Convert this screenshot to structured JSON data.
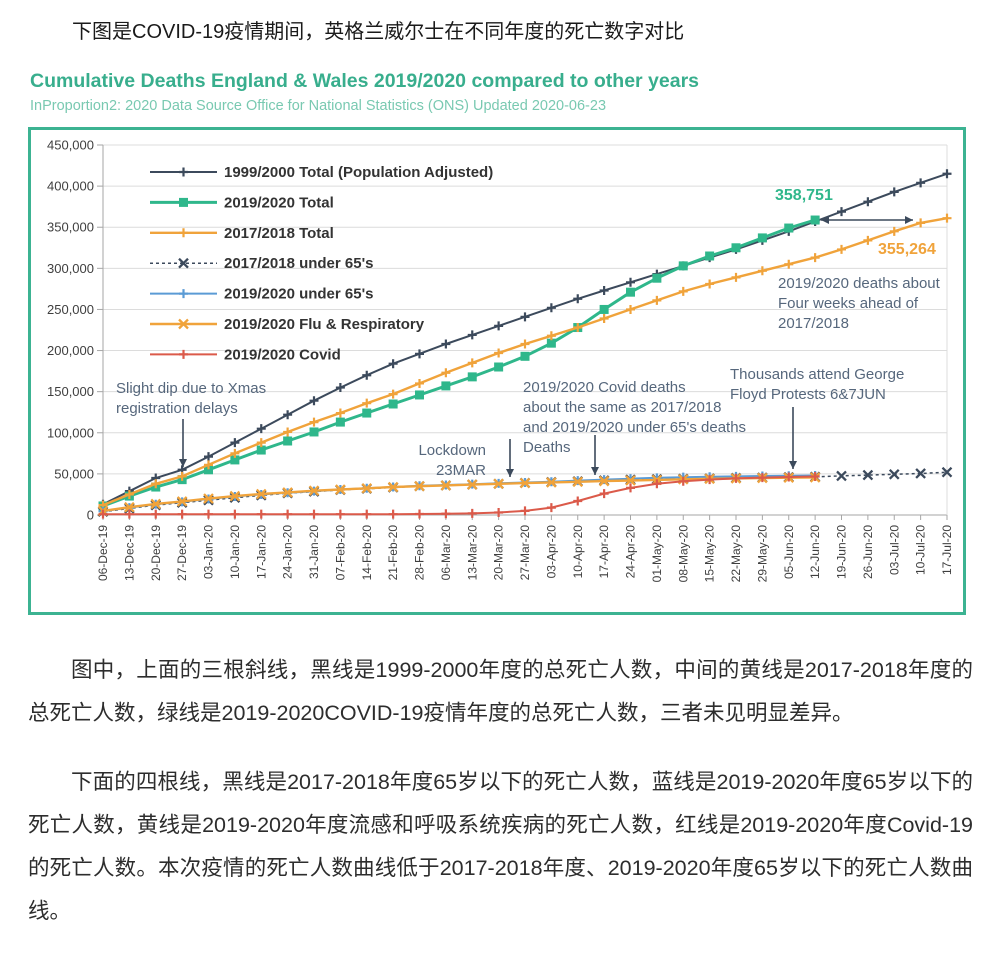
{
  "page": {
    "intro": "下图是COVID-19疫情期间，英格兰威尔士在不同年度的死亡数字对比",
    "paragraph1": "图中，上面的三根斜线，黑线是1999-2000年度的总死亡人数，中间的黄线是2017-2018年度的总死亡人数，绿线是2019-2020COVID-19疫情年度的总死亡人数，三者未见明显差异。",
    "paragraph2": "下面的四根线，黑线是2017-2018年度65岁以下的死亡人数，蓝线是2019-2020年度65岁以下的死亡人数，黄线是2019-2020年度流感和呼吸系统疾病的死亡人数，红线是2019-2020年度Covid-19的死亡人数。本次疫情的死亡人数曲线低于2017-2018年度、2019-2020年度65岁以下的死亡人数曲线。"
  },
  "chart_header": {
    "title": "Cumulative Deaths England & Wales 2019/2020 compared to other years",
    "subtitle": "InProportion2: 2020 Data Source Office for National Statistics (ONS) Updated 2020-06-23"
  },
  "colors": {
    "teal": "#38AE8D",
    "teal_light": "#79C9B1",
    "box_border": "#3CB392",
    "gridline": "#DCDCDC",
    "axis": "#A6A6A6",
    "tick_text": "#3F3F3F",
    "annotation_text": "#56677C",
    "arrow": "#3C4A5C"
  },
  "chart_data": {
    "type": "line",
    "title": "Cumulative Deaths England & Wales 2019/2020 compared to other years",
    "xlabel": "",
    "ylabel": "",
    "ylim": [
      0,
      450000
    ],
    "ytick_step": 50000,
    "grid": "horizontal",
    "legend_position": "top-left-inside",
    "x": [
      "06-Dec-19",
      "13-Dec-19",
      "20-Dec-19",
      "27-Dec-19",
      "03-Jan-20",
      "10-Jan-20",
      "17-Jan-20",
      "24-Jan-20",
      "31-Jan-20",
      "07-Feb-20",
      "14-Feb-20",
      "21-Feb-20",
      "28-Feb-20",
      "06-Mar-20",
      "13-Mar-20",
      "20-Mar-20",
      "27-Mar-20",
      "03-Apr-20",
      "10-Apr-20",
      "17-Apr-20",
      "24-Apr-20",
      "01-May-20",
      "08-May-20",
      "15-May-20",
      "22-May-20",
      "29-May-20",
      "05-Jun-20",
      "12-Jun-20",
      "19-Jun-20",
      "26-Jun-20",
      "03-Jul-20",
      "10-Jul-20",
      "17-Jul-20"
    ],
    "series": [
      {
        "id": "series-1999-2000-total",
        "name": "1999/2000 Total (Population Adjusted)",
        "color": "#3C4A5C",
        "marker": "plus",
        "dash": false,
        "width": 2,
        "values": [
          13000,
          29000,
          45000,
          55000,
          71000,
          88000,
          105000,
          122000,
          139000,
          155000,
          170000,
          184000,
          196000,
          208000,
          219000,
          230000,
          241000,
          252000,
          263000,
          273000,
          283000,
          293000,
          303000,
          313000,
          323000,
          334000,
          345000,
          357000,
          369000,
          381000,
          393000,
          404000,
          415000
        ]
      },
      {
        "id": "series-2019-2020-total",
        "name": "2019/2020 Total",
        "color": "#2FB78B",
        "marker": "square",
        "dash": false,
        "width": 3,
        "values": [
          11000,
          23000,
          34000,
          43000,
          55000,
          67000,
          79000,
          90000,
          101000,
          113000,
          124000,
          135000,
          146000,
          157000,
          168000,
          180000,
          193000,
          209000,
          228000,
          250000,
          271000,
          288000,
          303000,
          315000,
          325000,
          337000,
          349000,
          358751,
          null,
          null,
          null,
          null,
          null
        ]
      },
      {
        "id": "series-2017-2018-total",
        "name": "2017/2018 Total",
        "color": "#F0A33B",
        "marker": "plus",
        "dash": false,
        "width": 2.4,
        "values": [
          12000,
          25000,
          38000,
          47000,
          61000,
          75000,
          88000,
          101000,
          113000,
          124000,
          136000,
          147000,
          160000,
          173000,
          185000,
          197000,
          208000,
          218000,
          228000,
          239000,
          250000,
          261000,
          272000,
          281000,
          289000,
          297000,
          305000,
          313000,
          323000,
          334000,
          345000,
          355264,
          361000
        ]
      },
      {
        "id": "series-2017-2018-under-65s",
        "name": "2017/2018 under 65's",
        "color": "#3C4A5C",
        "marker": "x",
        "dash": true,
        "width": 1.5,
        "values": [
          4000,
          8000,
          12000,
          15000,
          18000,
          21000,
          24000,
          26500,
          28500,
          30500,
          32000,
          33500,
          35000,
          36000,
          37000,
          38000,
          39000,
          40000,
          41000,
          42000,
          43000,
          43500,
          44000,
          44500,
          45000,
          45500,
          46000,
          46500,
          47500,
          48500,
          49500,
          50500,
          52000
        ]
      },
      {
        "id": "series-2019-2020-under-65s",
        "name": "2019/2020 under 65's",
        "color": "#5B9BD5",
        "marker": "plus",
        "dash": false,
        "width": 2,
        "values": [
          4500,
          9000,
          13000,
          16000,
          19500,
          22500,
          25000,
          27000,
          29000,
          31000,
          32500,
          34000,
          35500,
          36500,
          37500,
          38500,
          39500,
          40500,
          41800,
          43000,
          44200,
          45200,
          46000,
          46500,
          47000,
          47400,
          47700,
          48000,
          null,
          null,
          null,
          null,
          null
        ]
      },
      {
        "id": "series-2019-2020-flu-respiratory",
        "name": "2019/2020 Flu & Respiratory",
        "color": "#F0A33B",
        "marker": "x",
        "dash": false,
        "width": 2.4,
        "values": [
          5000,
          9500,
          13500,
          16500,
          20000,
          23000,
          25500,
          27500,
          29500,
          31000,
          32500,
          34000,
          35000,
          36000,
          37000,
          38000,
          38800,
          39600,
          40400,
          41200,
          42000,
          42700,
          43400,
          44000,
          44500,
          45000,
          45400,
          45700,
          null,
          null,
          null,
          null,
          null
        ]
      },
      {
        "id": "series-2019-2020-covid",
        "name": "2019/2020 Covid",
        "color": "#DB5A4A",
        "marker": "plus",
        "dash": false,
        "width": 2,
        "values": [
          1000,
          1000,
          1000,
          1000,
          1000,
          1000,
          1000,
          1000,
          1000,
          1000,
          1000,
          1000,
          1200,
          1500,
          2000,
          3000,
          5000,
          9000,
          17000,
          26000,
          33000,
          38000,
          41000,
          43000,
          44500,
          45500,
          46200,
          46800,
          null,
          null,
          null,
          null,
          null
        ]
      }
    ],
    "annotations": [
      {
        "id": "value_green",
        "lines": [
          "358,751"
        ],
        "color": "#2FB78B",
        "bold": true
      },
      {
        "id": "value_orange",
        "lines": [
          "355,264"
        ],
        "color": "#F0A33B",
        "bold": true
      },
      {
        "id": "four_weeks",
        "lines": [
          "2019/2020 deaths about",
          "Four weeks ahead of",
          "2017/2018"
        ],
        "color": "#56677C",
        "bold": false
      },
      {
        "id": "xmas_dip",
        "lines": [
          "Slight dip due to Xmas",
          "registration delays"
        ],
        "color": "#56677C",
        "bold": false
      },
      {
        "id": "lockdown",
        "lines": [
          "Lockdown",
          "23MAR"
        ],
        "color": "#56677C",
        "bold": false
      },
      {
        "id": "covid_similar",
        "lines": [
          "2019/2020 Covid deaths",
          "about the same as  2017/2018",
          "and 2019/2020 under 65's deaths",
          "Deaths"
        ],
        "color": "#56677C",
        "bold": false
      },
      {
        "id": "floyd_protests",
        "lines": [
          "Thousands attend George",
          "Floyd Protests 6&7JUN"
        ],
        "color": "#56677C",
        "bold": false
      }
    ]
  }
}
